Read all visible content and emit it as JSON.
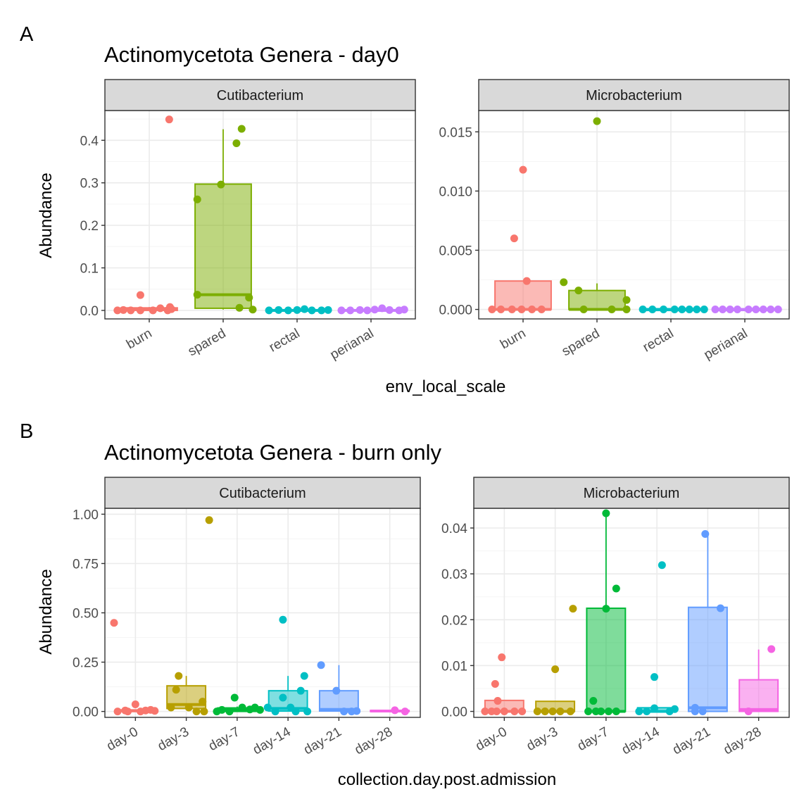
{
  "figure": {
    "panel_a_label": "A",
    "panel_b_label": "B",
    "panel_a_title": "Actinomycetota Genera - day0",
    "panel_b_title": "Actinomycetota Genera - burn only",
    "ylabel": "Abundance",
    "panel_a_xlabel": "env_local_scale",
    "panel_b_xlabel": "collection.day.post.admission"
  },
  "colors": {
    "group_4": [
      "#F8766D",
      "#7CAE00",
      "#00BFC4",
      "#C77CFF"
    ],
    "group_6": [
      "#F8766D",
      "#B79F00",
      "#00BA38",
      "#00BFC4",
      "#619CFF",
      "#F564E3"
    ],
    "strip_fill": "#D9D9D9",
    "grid_major": "#EBEBEB",
    "grid_minor": "#F5F5F5",
    "axis_text": "#4D4D4D"
  },
  "chart_data": [
    {
      "type": "box",
      "facet": "Cutibacterium",
      "title": "Actinomycetota Genera - day0",
      "xlabel": "env_local_scale",
      "ylabel": "Abundance",
      "categories": [
        "burn",
        "spared",
        "rectal",
        "perianal"
      ],
      "ylim": [
        -0.02,
        0.47
      ],
      "yticks": [
        0,
        0.1,
        0.2,
        0.3,
        0.4
      ],
      "ytick_labels": [
        "0.0",
        "0.1",
        "0.2",
        "0.3",
        "0.4"
      ],
      "boxes": [
        {
          "q1": 0.0,
          "median": 0.003,
          "q3": 0.006,
          "lower": 0.0,
          "upper": 0.008
        },
        {
          "q1": 0.005,
          "median": 0.037,
          "q3": 0.297,
          "lower": 0.002,
          "upper": 0.426
        },
        {
          "q1": 0.0,
          "median": 0.0,
          "q3": 0.001,
          "lower": 0.0,
          "upper": 0.002
        },
        {
          "q1": 0.0,
          "median": 0.0,
          "q3": 0.001,
          "lower": 0.0,
          "upper": 0.002
        }
      ],
      "points": [
        [
          [
            -0.43,
            0.0
          ],
          [
            -0.35,
            0.001
          ],
          [
            -0.25,
            0.0
          ],
          [
            -0.12,
            0.0
          ],
          [
            0.05,
            0.0
          ],
          [
            0.25,
            0.0
          ],
          [
            0.3,
            0.003
          ],
          [
            0.15,
            0.005
          ],
          [
            0.28,
            0.008
          ],
          [
            -0.12,
            0.036
          ],
          [
            0.27,
            0.449
          ]
        ],
        [
          [
            -0.35,
            0.261
          ],
          [
            -0.35,
            0.037
          ],
          [
            -0.03,
            0.296
          ],
          [
            0.18,
            0.393
          ],
          [
            0.25,
            0.427
          ],
          [
            0.22,
            0.006
          ],
          [
            0.35,
            0.03
          ],
          [
            0.4,
            0.002
          ]
        ],
        [
          [
            -0.38,
            0.0
          ],
          [
            -0.25,
            0.001
          ],
          [
            -0.12,
            0.0
          ],
          [
            0.0,
            0.001
          ],
          [
            0.1,
            0.003
          ],
          [
            0.2,
            0.0
          ],
          [
            0.33,
            0.0
          ],
          [
            0.42,
            0.001
          ]
        ],
        [
          [
            -0.4,
            0.0
          ],
          [
            -0.28,
            0.0
          ],
          [
            -0.15,
            0.001
          ],
          [
            -0.05,
            0.0
          ],
          [
            0.05,
            0.002
          ],
          [
            0.15,
            0.005
          ],
          [
            0.25,
            0.001
          ],
          [
            0.38,
            0.0
          ],
          [
            0.45,
            0.002
          ]
        ]
      ]
    },
    {
      "type": "box",
      "facet": "Microbacterium",
      "title": "Actinomycetota Genera - day0",
      "xlabel": "env_local_scale",
      "ylabel": "Abundance",
      "categories": [
        "burn",
        "spared",
        "rectal",
        "perianal"
      ],
      "ylim": [
        -0.0008,
        0.0168
      ],
      "yticks": [
        0,
        0.005,
        0.01,
        0.015
      ],
      "ytick_labels": [
        "0.000",
        "0.005",
        "0.010",
        "0.015"
      ],
      "boxes": [
        {
          "q1": 0.0,
          "median": 0.0,
          "q3": 0.0024,
          "lower": 0.0,
          "upper": 0.0024
        },
        {
          "q1": 0.0,
          "median": 0.0,
          "q3": 0.0016,
          "lower": 0.0,
          "upper": 0.0022
        },
        {
          "q1": 0.0,
          "median": 0.0,
          "q3": 0.0,
          "lower": 0.0,
          "upper": 0.0
        },
        {
          "q1": 0.0,
          "median": 0.0,
          "q3": 0.0,
          "lower": 0.0,
          "upper": 0.0
        }
      ],
      "points": [
        [
          [
            -0.42,
            0.0
          ],
          [
            -0.3,
            0.0
          ],
          [
            -0.15,
            0.0
          ],
          [
            -0.02,
            0.0
          ],
          [
            0.12,
            0.0
          ],
          [
            0.25,
            0.0
          ],
          [
            0.05,
            0.0024
          ],
          [
            -0.12,
            0.006
          ],
          [
            0.0,
            0.0118
          ]
        ],
        [
          [
            -0.45,
            0.0023
          ],
          [
            -0.25,
            0.0016
          ],
          [
            0.0,
            0.0159
          ],
          [
            -0.18,
            0.0
          ],
          [
            0.2,
            0.0
          ],
          [
            0.4,
            0.0
          ],
          [
            0.4,
            0.0008
          ]
        ],
        [
          [
            -0.38,
            0.0
          ],
          [
            -0.25,
            0.0
          ],
          [
            -0.1,
            0.0
          ],
          [
            0.05,
            0.0
          ],
          [
            0.15,
            0.0
          ],
          [
            0.25,
            0.0
          ],
          [
            0.35,
            0.0
          ],
          [
            0.45,
            0.0
          ]
        ],
        [
          [
            -0.4,
            0.0
          ],
          [
            -0.3,
            0.0
          ],
          [
            -0.2,
            0.0
          ],
          [
            -0.1,
            0.0
          ],
          [
            0.05,
            0.0
          ],
          [
            0.15,
            0.0
          ],
          [
            0.25,
            0.0
          ],
          [
            0.35,
            0.0
          ],
          [
            0.45,
            0.0
          ]
        ]
      ]
    },
    {
      "type": "box",
      "facet": "Cutibacterium",
      "title": "Actinomycetota Genera - burn only",
      "xlabel": "collection.day.post.admission",
      "ylabel": "Abundance",
      "categories": [
        "day-0",
        "day-3",
        "day-7",
        "day-14",
        "day-21",
        "day-28"
      ],
      "ylim": [
        -0.03,
        1.03
      ],
      "yticks": [
        0,
        0.25,
        0.5,
        0.75,
        1.0
      ],
      "ytick_labels": [
        "0.00",
        "0.25",
        "0.50",
        "0.75",
        "1.00"
      ],
      "boxes": [
        {
          "q1": 0.0,
          "median": 0.003,
          "q3": 0.008,
          "lower": 0.0,
          "upper": 0.01
        },
        {
          "q1": 0.015,
          "median": 0.035,
          "q3": 0.13,
          "lower": 0.008,
          "upper": 0.18
        },
        {
          "q1": 0.0,
          "median": 0.007,
          "q3": 0.018,
          "lower": 0.0,
          "upper": 0.025
        },
        {
          "q1": 0.002,
          "median": 0.015,
          "q3": 0.105,
          "lower": 0.0,
          "upper": 0.18
        },
        {
          "q1": 0.002,
          "median": 0.01,
          "q3": 0.105,
          "lower": 0.0,
          "upper": 0.235
        },
        {
          "q1": 0.0,
          "median": 0.002,
          "q3": 0.005,
          "lower": 0.0,
          "upper": 0.006
        }
      ],
      "points": [
        [
          [
            -0.35,
            0.0
          ],
          [
            -0.15,
            0.0
          ],
          [
            -0.2,
            0.005
          ],
          [
            0.0,
            0.036
          ],
          [
            0.1,
            0.0
          ],
          [
            0.2,
            0.005
          ],
          [
            0.3,
            0.008
          ],
          [
            0.38,
            0.003
          ],
          [
            -0.42,
            0.449
          ]
        ],
        [
          [
            -0.3,
            0.02
          ],
          [
            -0.2,
            0.11
          ],
          [
            -0.15,
            0.18
          ],
          [
            0.05,
            0.02
          ],
          [
            0.2,
            0.0
          ],
          [
            0.32,
            0.05
          ],
          [
            0.35,
            0.0
          ],
          [
            0.45,
            0.97
          ]
        ],
        [
          [
            -0.4,
            0.0
          ],
          [
            -0.3,
            0.008
          ],
          [
            -0.15,
            0.0
          ],
          [
            -0.05,
            0.07
          ],
          [
            0.1,
            0.02
          ],
          [
            0.25,
            0.01
          ],
          [
            0.35,
            0.02
          ],
          [
            0.45,
            0.008
          ]
        ],
        [
          [
            -0.4,
            0.02
          ],
          [
            -0.25,
            0.0
          ],
          [
            -0.1,
            0.07
          ],
          [
            -0.1,
            0.465
          ],
          [
            0.05,
            0.02
          ],
          [
            0.15,
            0.0
          ],
          [
            0.25,
            0.105
          ],
          [
            0.32,
            0.18
          ],
          [
            0.38,
            0.0
          ]
        ],
        [
          [
            -0.35,
            0.235
          ],
          [
            -0.05,
            0.105
          ],
          [
            0.1,
            0.0
          ],
          [
            0.25,
            0.0
          ],
          [
            0.35,
            0.002
          ]
        ],
        [
          [
            0.1,
            0.006
          ],
          [
            0.3,
            0.0
          ]
        ]
      ]
    },
    {
      "type": "box",
      "facet": "Microbacterium",
      "title": "Actinomycetota Genera - burn only",
      "xlabel": "collection.day.post.admission",
      "ylabel": "Abundance",
      "categories": [
        "day-0",
        "day-3",
        "day-7",
        "day-14",
        "day-21",
        "day-28"
      ],
      "ylim": [
        -0.0013,
        0.0443
      ],
      "yticks": [
        0,
        0.01,
        0.02,
        0.03,
        0.04
      ],
      "ytick_labels": [
        "0.00",
        "0.01",
        "0.02",
        "0.03",
        "0.04"
      ],
      "boxes": [
        {
          "q1": 0.0,
          "median": 0.0,
          "q3": 0.0024,
          "lower": 0.0,
          "upper": 0.0024
        },
        {
          "q1": 0.0,
          "median": 0.0,
          "q3": 0.0022,
          "lower": 0.0,
          "upper": 0.0022
        },
        {
          "q1": 0.0,
          "median": 0.0,
          "q3": 0.0225,
          "lower": 0.0,
          "upper": 0.0432
        },
        {
          "q1": 0.0,
          "median": 0.0,
          "q3": 0.0008,
          "lower": 0.0,
          "upper": 0.0008
        },
        {
          "q1": 0.0,
          "median": 0.0008,
          "q3": 0.0227,
          "lower": 0.0,
          "upper": 0.0385
        },
        {
          "q1": 0.0,
          "median": 0.0004,
          "q3": 0.0069,
          "lower": 0.0,
          "upper": 0.0135
        }
      ],
      "points": [
        [
          [
            -0.38,
            0.0
          ],
          [
            -0.25,
            0.0
          ],
          [
            -0.15,
            0.0
          ],
          [
            0.0,
            0.0
          ],
          [
            0.2,
            0.0
          ],
          [
            0.35,
            0.0
          ],
          [
            -0.18,
            0.006
          ],
          [
            -0.13,
            0.0023
          ],
          [
            -0.05,
            0.0118
          ]
        ],
        [
          [
            -0.35,
            0.0
          ],
          [
            -0.2,
            0.0
          ],
          [
            -0.05,
            0.0
          ],
          [
            0.1,
            0.0
          ],
          [
            0.3,
            0.0
          ],
          [
            0.0,
            0.0092
          ],
          [
            0.35,
            0.0224
          ]
        ],
        [
          [
            -0.35,
            0.0
          ],
          [
            -0.2,
            0.0
          ],
          [
            -0.1,
            0.0
          ],
          [
            0.05,
            0.0
          ],
          [
            0.2,
            0.0
          ],
          [
            -0.25,
            0.0023
          ],
          [
            0.0,
            0.0432
          ],
          [
            0.0,
            0.0224
          ],
          [
            0.2,
            0.0268
          ]
        ],
        [
          [
            -0.35,
            0.0
          ],
          [
            -0.2,
            0.0
          ],
          [
            -0.05,
            0.0007
          ],
          [
            0.25,
            0.0
          ],
          [
            0.35,
            0.0005
          ],
          [
            -0.05,
            0.0075
          ],
          [
            0.1,
            0.0319
          ]
        ],
        [
          [
            -0.25,
            0.0
          ],
          [
            -0.1,
            0.0
          ],
          [
            -0.25,
            0.0008
          ],
          [
            0.25,
            0.0225
          ],
          [
            -0.05,
            0.0387
          ]
        ],
        [
          [
            -0.2,
            0.0
          ],
          [
            0.25,
            0.0136
          ]
        ]
      ]
    }
  ]
}
